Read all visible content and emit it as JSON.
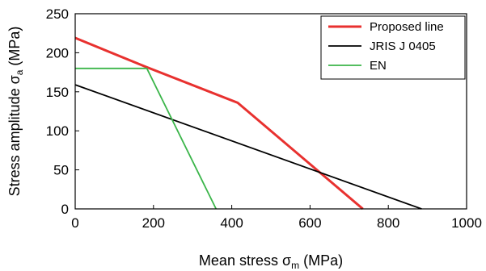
{
  "chart_data": {
    "type": "line",
    "xlabel": "Mean stress σm (MPa)",
    "xlabel_parts": {
      "main": "Mean stress σ",
      "sub": "m",
      "unit": " (MPa)"
    },
    "ylabel": "Stress amplitude σa (MPa)",
    "ylabel_parts": {
      "main": "Stress amplitude σ",
      "sub": "a",
      "unit": " (MPa)"
    },
    "xlim": [
      0,
      1000
    ],
    "ylim": [
      0,
      250
    ],
    "x_ticks": [
      0,
      200,
      400,
      600,
      800,
      1000
    ],
    "y_ticks": [
      0,
      50,
      100,
      150,
      200,
      250
    ],
    "grid": false,
    "legend_position": "top-right",
    "series": [
      {
        "name": "Proposed line",
        "color": "#e8312f",
        "x": [
          0,
          180,
          415,
          735
        ],
        "y": [
          219,
          182,
          136,
          0
        ]
      },
      {
        "name": "JRIS J 0405",
        "color": "#000000",
        "x": [
          0,
          885
        ],
        "y": [
          159,
          0
        ]
      },
      {
        "name": "EN",
        "color": "#3bb54a",
        "x": [
          0,
          183,
          360
        ],
        "y": [
          180,
          180,
          0
        ]
      }
    ]
  }
}
